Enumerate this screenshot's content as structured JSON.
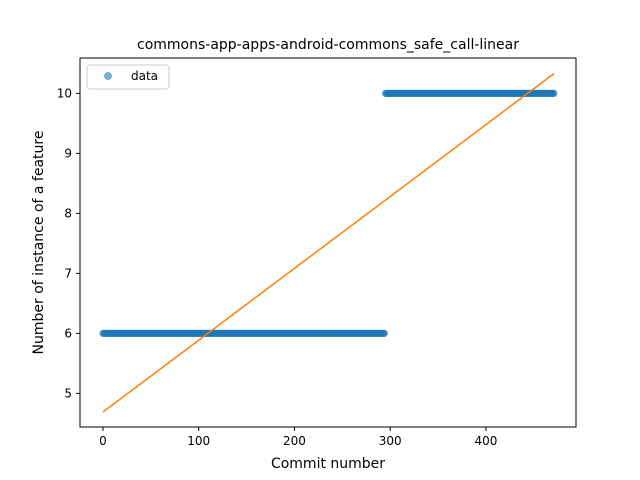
{
  "chart_data": {
    "type": "scatter",
    "title": "commons-app-apps-android-commons_safe_call-linear",
    "xlabel": "Commit number",
    "ylabel": "Number of instance of a feature",
    "xlim": [
      -24,
      494
    ],
    "ylim": [
      4.44,
      10.59
    ],
    "xticks": [
      0,
      100,
      200,
      300,
      400
    ],
    "yticks": [
      5,
      6,
      7,
      8,
      9,
      10
    ],
    "grid": false,
    "legend": {
      "placement": "top-left",
      "entries": [
        "data"
      ]
    },
    "series": [
      {
        "name": "data",
        "kind": "scatter",
        "color": "#1f77b4",
        "segments": [
          {
            "x_start": 0,
            "x_end": 294,
            "y": 6
          },
          {
            "x_start": 295,
            "x_end": 471,
            "y": 10
          }
        ]
      },
      {
        "kind": "line",
        "color": "#ff7f0e",
        "points": [
          {
            "x": 0,
            "y": 4.69
          },
          {
            "x": 471,
            "y": 10.33
          }
        ]
      }
    ]
  }
}
